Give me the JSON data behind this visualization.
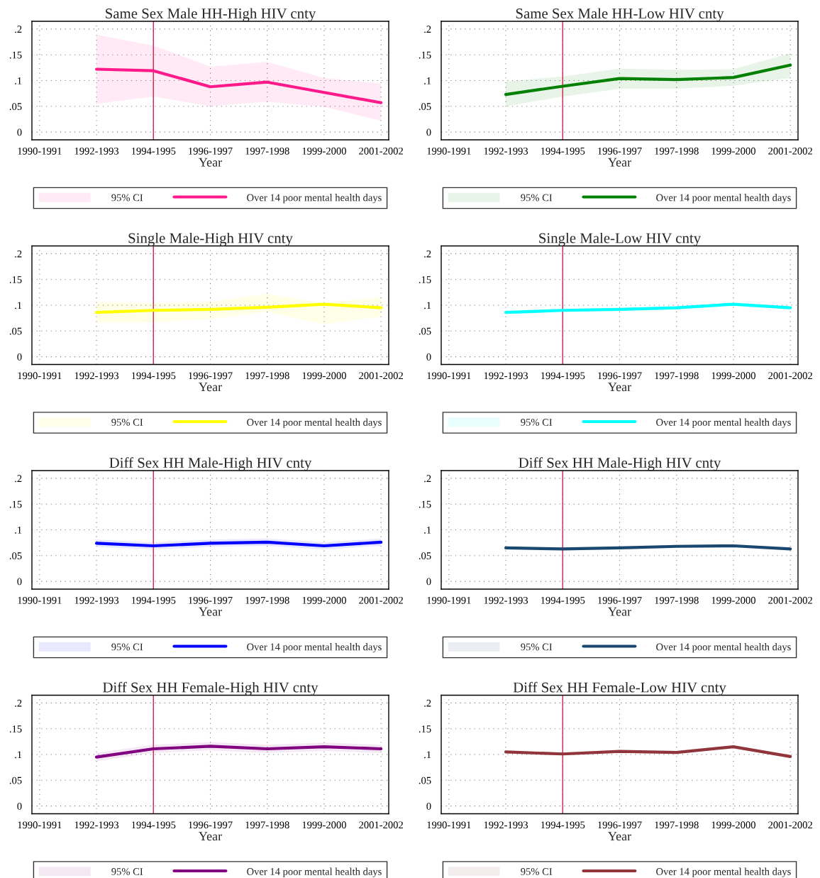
{
  "chart_data": [
    {
      "type": "line",
      "title": "Same Sex Male HH-High HIV cnty",
      "xlabel": "Year",
      "annotations": [
        "95% CI"
      ],
      "categories": [
        "1990-1991",
        "1992-1993",
        "1994-1995",
        "1996-1997",
        "1997-1998",
        "1999-2000",
        "2001-2002"
      ],
      "ylim": [
        -0.015,
        0.215
      ],
      "yticks": [
        0,
        {
          "value": 0.05,
          "label": ".05"
        },
        {
          "value": 0.1,
          "label": ".1"
        },
        {
          "value": 0.15,
          "label": ".15"
        },
        {
          "value": 0.2,
          "label": ".2"
        }
      ],
      "grid": true,
      "legend": "bottom",
      "ref_lines": [
        {
          "axis": "x",
          "value": "1994-1995",
          "color": "#d62050"
        }
      ],
      "series": [
        {
          "name": "Over 14 poor mental health days",
          "color": "#ff1a8c",
          "values": [
            null,
            0.122,
            0.119,
            0.088,
            0.097,
            0.077,
            0.057
          ],
          "lower": [
            null,
            0.055,
            0.069,
            0.05,
            0.059,
            0.049,
            0.022
          ],
          "upper": [
            null,
            0.189,
            0.168,
            0.127,
            0.136,
            0.105,
            0.094
          ]
        }
      ]
    },
    {
      "type": "line",
      "title": "Same Sex Male HH-Low HIV cnty",
      "xlabel": "Year",
      "annotations": [
        "95% CI"
      ],
      "categories": [
        "1990-1991",
        "1992-1993",
        "1994-1995",
        "1996-1997",
        "1997-1998",
        "1999-2000",
        "2001-2002"
      ],
      "ylim": [
        -0.015,
        0.215
      ],
      "yticks": [
        0,
        {
          "value": 0.05,
          "label": ".05"
        },
        {
          "value": 0.1,
          "label": ".1"
        },
        {
          "value": 0.15,
          "label": ".15"
        },
        {
          "value": 0.2,
          "label": ".2"
        }
      ],
      "grid": true,
      "legend": "bottom",
      "ref_lines": [
        {
          "axis": "x",
          "value": "1994-1995",
          "color": "#d62050"
        }
      ],
      "series": [
        {
          "name": "Over 14 poor mental health days",
          "color": "#008000",
          "values": [
            null,
            0.073,
            0.089,
            0.104,
            0.102,
            0.106,
            0.13
          ],
          "lower": [
            null,
            0.05,
            0.069,
            0.084,
            0.084,
            0.09,
            0.105
          ],
          "upper": [
            null,
            0.098,
            0.108,
            0.123,
            0.121,
            0.122,
            0.153
          ]
        }
      ]
    },
    {
      "type": "line",
      "title": "Single Male-High HIV cnty",
      "xlabel": "Year",
      "annotations": [
        "95% CI"
      ],
      "categories": [
        "1990-1991",
        "1992-1993",
        "1994-1995",
        "1996-1997",
        "1997-1998",
        "1999-2000",
        "2001-2002"
      ],
      "ylim": [
        -0.015,
        0.215
      ],
      "yticks": [
        0,
        {
          "value": 0.05,
          "label": ".05"
        },
        {
          "value": 0.1,
          "label": ".1"
        },
        {
          "value": 0.15,
          "label": ".15"
        },
        {
          "value": 0.2,
          "label": ".2"
        }
      ],
      "grid": true,
      "legend": "bottom",
      "ref_lines": [
        {
          "axis": "x",
          "value": "1994-1995",
          "color": "#d62050"
        }
      ],
      "series": [
        {
          "name": "Over 14 poor mental health days",
          "color": "#ffff00",
          "values": [
            null,
            0.086,
            0.09,
            0.092,
            0.096,
            0.102,
            0.095
          ],
          "lower": [
            null,
            0.066,
            0.067,
            0.073,
            0.087,
            0.063,
            0.078
          ],
          "upper": [
            null,
            0.107,
            0.104,
            0.107,
            0.122,
            0.104,
            0.116
          ]
        }
      ]
    },
    {
      "type": "line",
      "title": "Single Male-Low HIV cnty",
      "xlabel": "Year",
      "annotations": [
        "95% CI"
      ],
      "categories": [
        "1990-1991",
        "1992-1993",
        "1994-1995",
        "1996-1997",
        "1997-1998",
        "1999-2000",
        "2001-2002"
      ],
      "ylim": [
        -0.015,
        0.215
      ],
      "yticks": [
        0,
        {
          "value": 0.05,
          "label": ".05"
        },
        {
          "value": 0.1,
          "label": ".1"
        },
        {
          "value": 0.15,
          "label": ".15"
        },
        {
          "value": 0.2,
          "label": ".2"
        }
      ],
      "grid": true,
      "legend": "bottom",
      "ref_lines": [
        {
          "axis": "x",
          "value": "1994-1995",
          "color": "#d62050"
        }
      ],
      "series": [
        {
          "name": "Over 14 poor mental health days",
          "color": "#00ffff",
          "values": [
            null,
            0.086,
            0.09,
            0.092,
            0.095,
            0.102,
            0.095
          ],
          "lower": [
            null,
            0.083,
            0.087,
            0.089,
            0.092,
            0.099,
            0.092
          ],
          "upper": [
            null,
            0.089,
            0.093,
            0.095,
            0.098,
            0.105,
            0.098
          ]
        }
      ]
    },
    {
      "type": "line",
      "title": "Diff Sex HH Male-High HIV cnty",
      "xlabel": "Year",
      "annotations": [
        "95% CI"
      ],
      "categories": [
        "1990-1991",
        "1992-1993",
        "1994-1995",
        "1996-1997",
        "1997-1998",
        "1999-2000",
        "2001-2002"
      ],
      "ylim": [
        -0.015,
        0.215
      ],
      "yticks": [
        0,
        {
          "value": 0.05,
          "label": ".05"
        },
        {
          "value": 0.1,
          "label": ".1"
        },
        {
          "value": 0.15,
          "label": ".15"
        },
        {
          "value": 0.2,
          "label": ".2"
        }
      ],
      "grid": true,
      "legend": "bottom",
      "ref_lines": [
        {
          "axis": "x",
          "value": "1994-1995",
          "color": "#d62050"
        }
      ],
      "series": [
        {
          "name": "Over 14 poor mental health days",
          "color": "#0000ff",
          "values": [
            null,
            0.074,
            0.069,
            0.074,
            0.076,
            0.069,
            0.076
          ],
          "lower": [
            null,
            0.067,
            0.062,
            0.067,
            0.069,
            0.062,
            0.069
          ],
          "upper": [
            null,
            0.081,
            0.076,
            0.081,
            0.083,
            0.076,
            0.083
          ]
        }
      ]
    },
    {
      "type": "line",
      "title": "Diff Sex HH Male-High HIV cnty",
      "xlabel": "Year",
      "annotations": [
        "95% CI"
      ],
      "categories": [
        "1990-1991",
        "1992-1993",
        "1994-1995",
        "1996-1997",
        "1997-1998",
        "1999-2000",
        "2001-2002"
      ],
      "ylim": [
        -0.015,
        0.215
      ],
      "yticks": [
        0,
        {
          "value": 0.05,
          "label": ".05"
        },
        {
          "value": 0.1,
          "label": ".1"
        },
        {
          "value": 0.15,
          "label": ".15"
        },
        {
          "value": 0.2,
          "label": ".2"
        }
      ],
      "grid": true,
      "legend": "bottom",
      "ref_lines": [
        {
          "axis": "x",
          "value": "1994-1995",
          "color": "#d62050"
        }
      ],
      "series": [
        {
          "name": "Over 14 poor mental health days",
          "color": "#1a476f",
          "values": [
            null,
            0.065,
            0.063,
            0.065,
            0.068,
            0.069,
            0.063
          ],
          "lower": [
            null,
            0.062,
            0.06,
            0.062,
            0.065,
            0.066,
            0.06
          ],
          "upper": [
            null,
            0.068,
            0.066,
            0.068,
            0.071,
            0.072,
            0.066
          ]
        }
      ]
    },
    {
      "type": "line",
      "title": "Diff Sex HH Female-High HIV cnty",
      "xlabel": "Year",
      "annotations": [
        "95% CI"
      ],
      "categories": [
        "1990-1991",
        "1992-1993",
        "1994-1995",
        "1996-1997",
        "1997-1998",
        "1999-2000",
        "2001-2002"
      ],
      "ylim": [
        -0.015,
        0.215
      ],
      "yticks": [
        0,
        {
          "value": 0.05,
          "label": ".05"
        },
        {
          "value": 0.1,
          "label": ".1"
        },
        {
          "value": 0.15,
          "label": ".15"
        },
        {
          "value": 0.2,
          "label": ".2"
        }
      ],
      "grid": true,
      "legend": "bottom",
      "ref_lines": [
        {
          "axis": "x",
          "value": "1994-1995",
          "color": "#d62050"
        }
      ],
      "series": [
        {
          "name": "Over 14 poor mental health days",
          "color": "#800080",
          "values": [
            null,
            0.095,
            0.111,
            0.116,
            0.111,
            0.115,
            0.111
          ],
          "lower": [
            null,
            0.087,
            0.103,
            0.108,
            0.103,
            0.107,
            0.103
          ],
          "upper": [
            null,
            0.103,
            0.119,
            0.124,
            0.119,
            0.123,
            0.119
          ]
        }
      ]
    },
    {
      "type": "line",
      "title": "Diff Sex HH Female-Low HIV cnty",
      "xlabel": "Year",
      "annotations": [
        "95% CI"
      ],
      "categories": [
        "1990-1991",
        "1992-1993",
        "1994-1995",
        "1996-1997",
        "1997-1998",
        "1999-2000",
        "2001-2002"
      ],
      "ylim": [
        -0.015,
        0.215
      ],
      "yticks": [
        0,
        {
          "value": 0.05,
          "label": ".05"
        },
        {
          "value": 0.1,
          "label": ".1"
        },
        {
          "value": 0.15,
          "label": ".15"
        },
        {
          "value": 0.2,
          "label": ".2"
        }
      ],
      "grid": true,
      "legend": "bottom",
      "ref_lines": [
        {
          "axis": "x",
          "value": "1994-1995",
          "color": "#d62050"
        }
      ],
      "series": [
        {
          "name": "Over 14 poor mental health days",
          "color": "#90353b",
          "values": [
            null,
            0.105,
            0.101,
            0.106,
            0.104,
            0.115,
            0.096
          ],
          "lower": [
            null,
            0.102,
            0.098,
            0.103,
            0.101,
            0.112,
            0.093
          ],
          "upper": [
            null,
            0.108,
            0.104,
            0.109,
            0.107,
            0.118,
            0.099
          ]
        }
      ]
    }
  ]
}
